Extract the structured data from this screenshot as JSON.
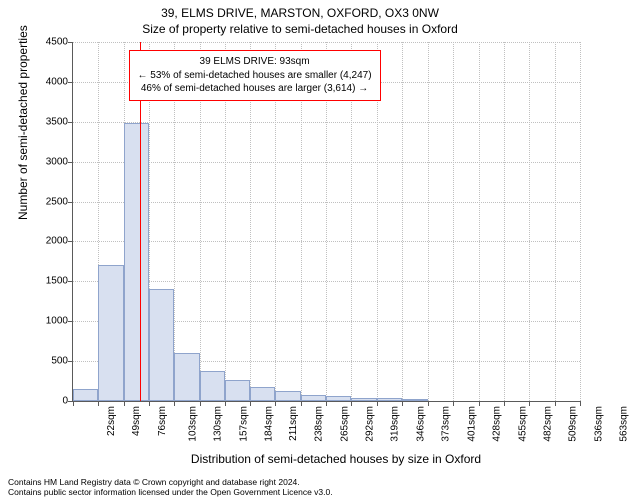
{
  "title": {
    "line1": "39, ELMS DRIVE, MARSTON, OXFORD, OX3 0NW",
    "line2": "Size of property relative to semi-detached houses in Oxford"
  },
  "chart": {
    "type": "histogram",
    "ylim": [
      0,
      4500
    ],
    "ytick_step": 500,
    "yticks": [
      0,
      500,
      1000,
      1500,
      2000,
      2500,
      3000,
      3500,
      4000,
      4500
    ],
    "xlim": [
      22,
      563
    ],
    "xticks": [
      22,
      49,
      76,
      103,
      130,
      157,
      184,
      211,
      238,
      265,
      292,
      319,
      346,
      373,
      401,
      428,
      455,
      482,
      509,
      536,
      563
    ],
    "xtick_unit": "sqm",
    "bin_width": 27,
    "values": [
      150,
      1700,
      3480,
      1400,
      600,
      370,
      260,
      180,
      120,
      80,
      60,
      40,
      40,
      20,
      0,
      0,
      0,
      0,
      0,
      0
    ],
    "bar_fill": "#d8e0f0",
    "bar_stroke": "#8fa4cc",
    "grid_color": "#c0c0c0",
    "axis_color": "#5a5a5a",
    "background_color": "#ffffff",
    "ylabel_fontsize": 12,
    "xlabel_fontsize": 12,
    "tick_fontsize": 10,
    "ylabel": "Number of semi-detached properties",
    "xlabel": "Distribution of semi-detached houses by size in Oxford"
  },
  "marker": {
    "value": 93,
    "color": "#ff0000"
  },
  "annotation": {
    "line1": "39 ELMS DRIVE: 93sqm",
    "line2": "← 53% of semi-detached houses are smaller (4,247)",
    "line3": "46% of semi-detached houses are larger (3,614) →",
    "border_color": "#ff0000",
    "background": "#ffffff",
    "fontsize": 10
  },
  "attribution": {
    "line1": "Contains HM Land Registry data © Crown copyright and database right 2024.",
    "line2": "Contains public sector information licensed under the Open Government Licence v3.0."
  }
}
